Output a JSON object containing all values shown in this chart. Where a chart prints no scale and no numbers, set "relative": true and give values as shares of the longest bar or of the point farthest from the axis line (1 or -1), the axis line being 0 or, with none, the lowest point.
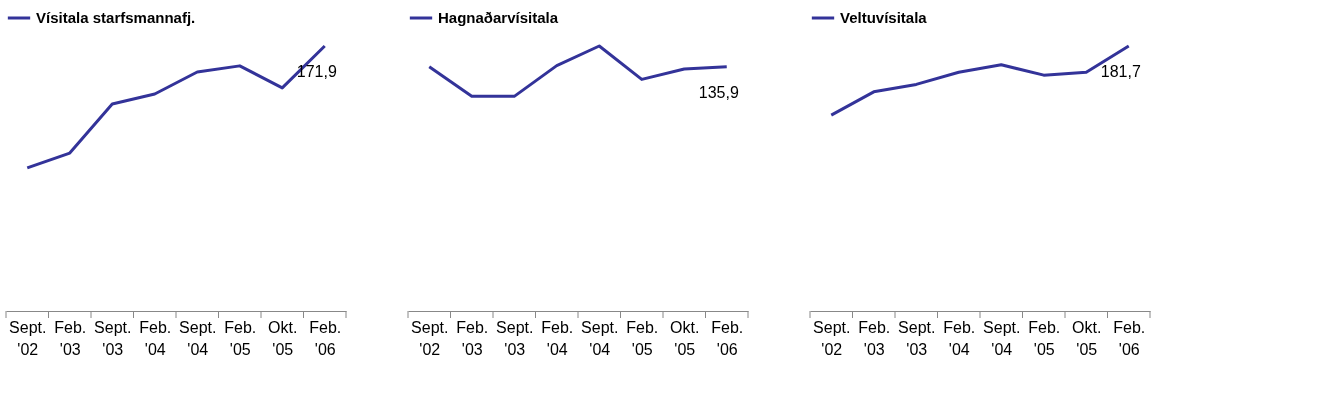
{
  "chart_data": [
    {
      "type": "line",
      "relative": true,
      "categories": [
        "Sept. '02",
        "Feb. '03",
        "Sept. '03",
        "Feb. '04",
        "Sept. '04",
        "Feb. '05",
        "Okt. '05",
        "Feb. '06"
      ],
      "legend": "top",
      "grid": false,
      "tick_labels": "x",
      "annotations": [
        "171,9"
      ],
      "series": [
        {
          "name": "Vísitala starfsmannafj.",
          "color": "#333399",
          "values": [
            0.54,
            0.596,
            0.781,
            0.819,
            0.902,
            0.925,
            0.842,
            1
          ]
        }
      ]
    },
    {
      "type": "line",
      "relative": true,
      "categories": [
        "Sept. '02",
        "Feb. '03",
        "Sept. '03",
        "Feb. '04",
        "Sept. '04",
        "Feb. '05",
        "Okt. '05",
        "Feb. '06"
      ],
      "legend": "top",
      "grid": false,
      "tick_labels": "x",
      "annotations": [
        "135,9"
      ],
      "series": [
        {
          "name": "Hagnaðarvísitala",
          "color": "#333399",
          "values": [
            0.922,
            0.81,
            0.81,
            0.926,
            1,
            0.874,
            0.913,
            0.922
          ]
        }
      ]
    },
    {
      "type": "line",
      "relative": true,
      "categories": [
        "Sept. '02",
        "Feb. '03",
        "Sept. '03",
        "Feb. '04",
        "Sept. '04",
        "Feb. '05",
        "Okt. '05",
        "Feb. '06"
      ],
      "legend": "top",
      "grid": false,
      "tick_labels": "x",
      "annotations": [
        "181,7"
      ],
      "series": [
        {
          "name": "Veltuvísitala",
          "color": "#333399",
          "values": [
            0.739,
            0.827,
            0.855,
            0.901,
            0.929,
            0.89,
            0.901,
            1
          ]
        }
      ]
    }
  ]
}
